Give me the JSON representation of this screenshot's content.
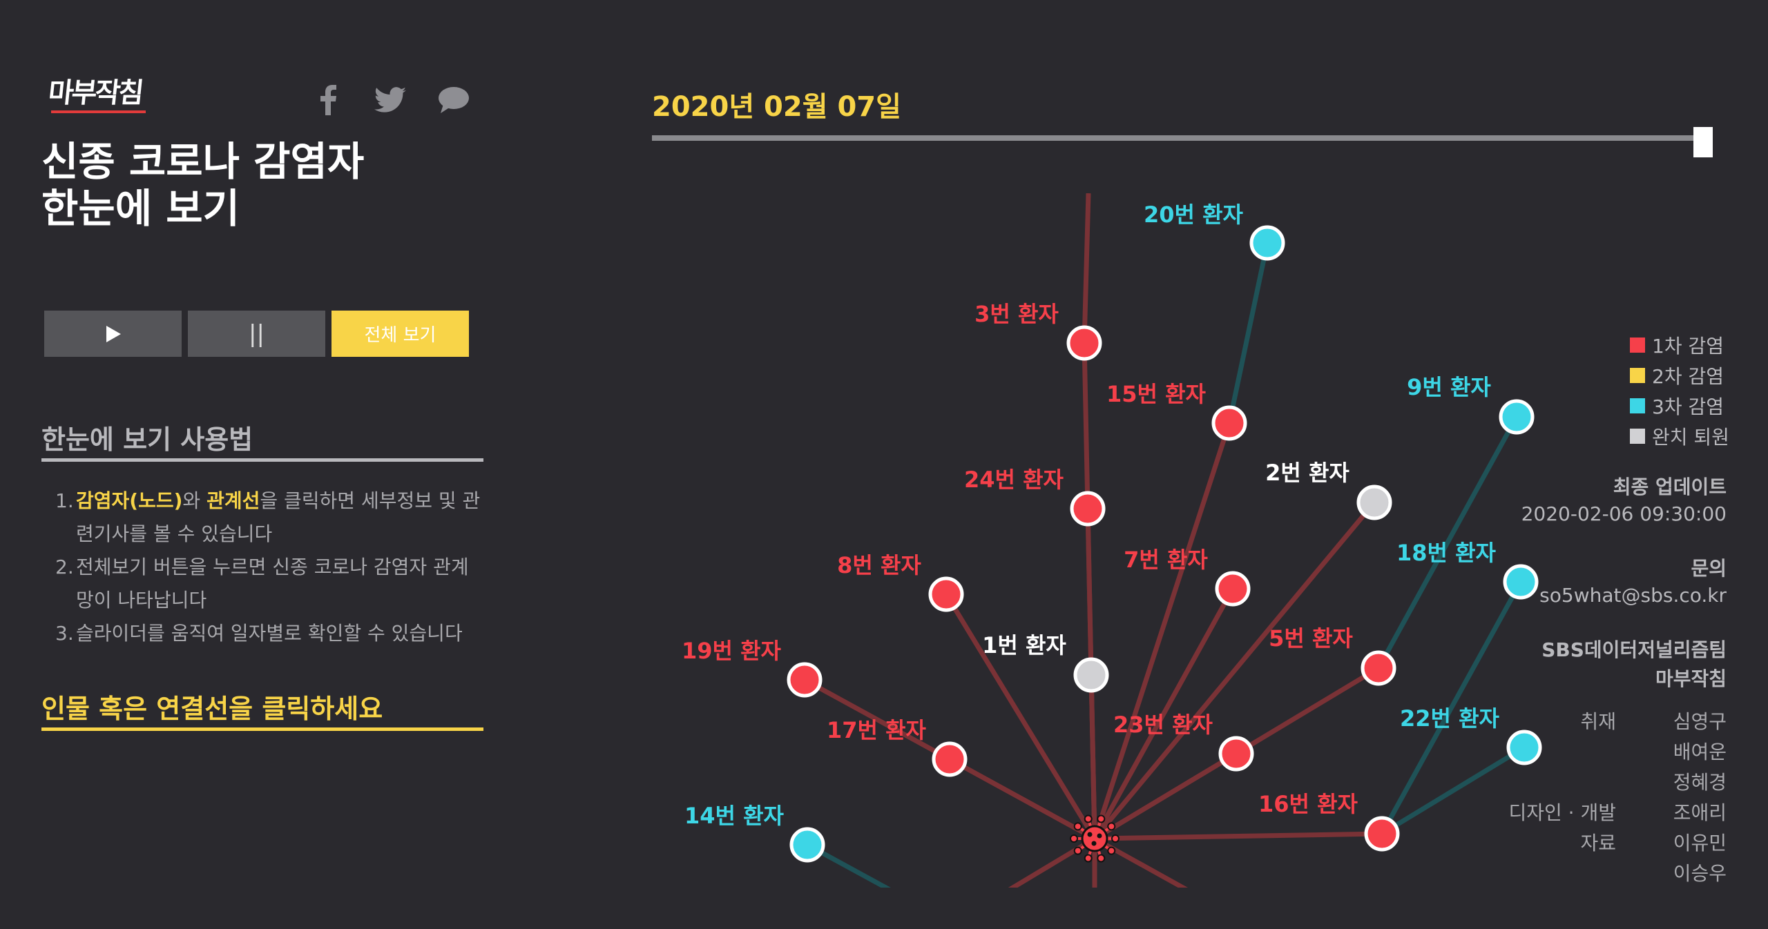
{
  "brand": {
    "logo_text": "마부작침"
  },
  "social": {
    "facebook_icon": "facebook-icon",
    "twitter_icon": "twitter-icon",
    "comment_icon": "speech-bubble-icon"
  },
  "title": {
    "line1": "신종 코로나 감염자",
    "line2": "한눈에 보기"
  },
  "controls": {
    "play_label": "▶",
    "pause_label": "||",
    "all_label": "전체 보기"
  },
  "howto": {
    "title": "한눈에 보기 사용법",
    "items": [
      {
        "num": "1.",
        "hl1": "감염자(노드)",
        "t1": "와 ",
        "hl2": "관계선",
        "t2": "을 클릭하면 세부정보 및 관련기사를 볼 수 있습니다"
      },
      {
        "num": "2.",
        "text": "전체보기 버튼을 누르면 신종 코로나 감염자 관계망이 나타납니다"
      },
      {
        "num": "3.",
        "text": "슬라이더를 움직여 일자별로 확인할 수 있습니다"
      }
    ]
  },
  "prompt": "인물 혹은 연결선을 클릭하세요",
  "timeline": {
    "date": "2020년 02월 07일",
    "position": 1.0
  },
  "colors": {
    "bg": "#2a292e",
    "accent": "#f8d448",
    "first": "#f6404a",
    "second": "#f8d448",
    "third": "#3dd6e6",
    "released": "#d1d1d4",
    "edge_red": "#7a3236",
    "edge_teal": "#1f5257",
    "muted": "#b9b9bd"
  },
  "legend": [
    {
      "label": "1차 감염",
      "color": "#f6404a"
    },
    {
      "label": "2차 감염",
      "color": "#f8d448"
    },
    {
      "label": "3차 감염",
      "color": "#3dd6e6"
    },
    {
      "label": "완치 퇴원",
      "color": "#d1d1d4"
    }
  ],
  "update": {
    "label": "최종 업데이트",
    "value": "2020-02-06 09:30:00"
  },
  "contact": {
    "label": "문의",
    "value": "so5what@sbs.co.kr"
  },
  "team": {
    "name1": "SBS데이터저널리즘팀",
    "name2": "마부작침"
  },
  "credits": [
    {
      "role": "취재",
      "names": [
        "심영구",
        "배여운",
        "정혜경"
      ]
    },
    {
      "role": "디자인 · 개발",
      "names": [
        "조애리"
      ]
    },
    {
      "role": "자료",
      "names": [
        "이유민",
        "이승우"
      ]
    }
  ],
  "network": {
    "hub": {
      "icon": "virus-icon"
    },
    "nodes": [
      {
        "id": "p20",
        "label": "20번 환자",
        "type": "third"
      },
      {
        "id": "p3",
        "label": "3번 환자",
        "type": "first"
      },
      {
        "id": "p15",
        "label": "15번 환자",
        "type": "first"
      },
      {
        "id": "p9",
        "label": "9번 환자",
        "type": "third"
      },
      {
        "id": "p24",
        "label": "24번 환자",
        "type": "first"
      },
      {
        "id": "p2",
        "label": "2번 환자",
        "type": "released"
      },
      {
        "id": "p8",
        "label": "8번 환자",
        "type": "first"
      },
      {
        "id": "p7",
        "label": "7번 환자",
        "type": "first"
      },
      {
        "id": "p18",
        "label": "18번 환자",
        "type": "third"
      },
      {
        "id": "p19",
        "label": "19번 환자",
        "type": "first"
      },
      {
        "id": "p1",
        "label": "1번 환자",
        "type": "released"
      },
      {
        "id": "p5",
        "label": "5번 환자",
        "type": "first"
      },
      {
        "id": "p17",
        "label": "17번 환자",
        "type": "first"
      },
      {
        "id": "p23",
        "label": "23번 환자",
        "type": "first"
      },
      {
        "id": "p22",
        "label": "22번 환자",
        "type": "third"
      },
      {
        "id": "p14",
        "label": "14번 환자",
        "type": "third"
      },
      {
        "id": "p16",
        "label": "16번 환자",
        "type": "first"
      }
    ],
    "edges": [
      {
        "from": "p3",
        "to": "top"
      },
      {
        "from": "p15",
        "to": "p20"
      },
      {
        "from": "p5",
        "to": "p9"
      },
      {
        "from": "p16",
        "to": "p18"
      },
      {
        "from": "p16",
        "to": "p22"
      },
      {
        "from": "p14",
        "to": "bottom-left"
      }
    ]
  }
}
